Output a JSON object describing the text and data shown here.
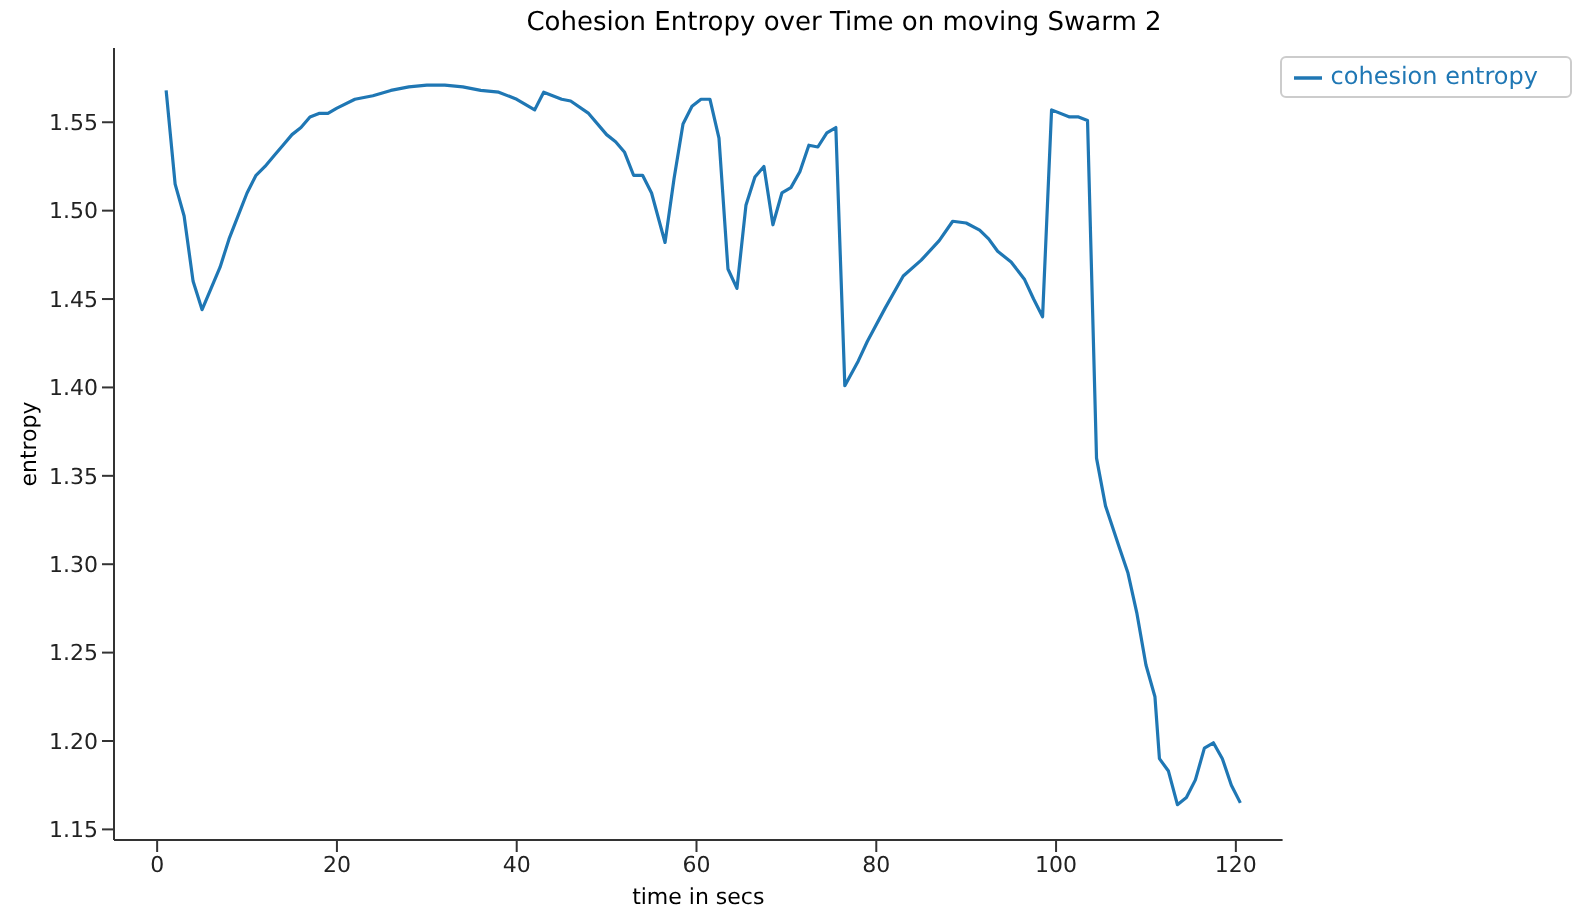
{
  "chart_data": {
    "type": "line",
    "title": "Cohesion Entropy over Time on moving Swarm 2",
    "xlabel": "time in secs",
    "ylabel": "entropy",
    "x": [
      1,
      2,
      3,
      4,
      5,
      6,
      7,
      8,
      9,
      10,
      11,
      12,
      13,
      14,
      15,
      16,
      17,
      18,
      19,
      20,
      22,
      24,
      26,
      28,
      30,
      32,
      34,
      36,
      38,
      40,
      42,
      43,
      45,
      46,
      48,
      50,
      51,
      52,
      53,
      54,
      55,
      56.5,
      57.5,
      58.5,
      59.5,
      60.5,
      61.5,
      62.5,
      63.5,
      64.5,
      65.5,
      66.5,
      67.5,
      68.5,
      69.5,
      70.5,
      71.5,
      72.5,
      73.5,
      74.5,
      75.5,
      76.5,
      78,
      79,
      81,
      83,
      85,
      87,
      88.5,
      90,
      91.5,
      92.5,
      93.5,
      95,
      96.5,
      97.5,
      98.5,
      99.5,
      101.5,
      102.5,
      103.5,
      104.5,
      105.5,
      107,
      108,
      109,
      110,
      111,
      111.5,
      112.5,
      113.5,
      114.5,
      115.5,
      116.5,
      117.5,
      118.5,
      119.5,
      120.5
    ],
    "series": [
      {
        "name": "cohesion entropy",
        "color": "#1f77b4",
        "values": [
          1.568,
          1.515,
          1.497,
          1.46,
          1.444,
          1.456,
          1.468,
          1.484,
          1.497,
          1.51,
          1.52,
          1.525,
          1.531,
          1.537,
          1.543,
          1.547,
          1.553,
          1.555,
          1.555,
          1.558,
          1.563,
          1.565,
          1.568,
          1.57,
          1.571,
          1.571,
          1.57,
          1.568,
          1.567,
          1.563,
          1.557,
          1.567,
          1.563,
          1.562,
          1.555,
          1.543,
          1.539,
          1.533,
          1.52,
          1.52,
          1.51,
          1.482,
          1.518,
          1.549,
          1.559,
          1.563,
          1.563,
          1.541,
          1.467,
          1.456,
          1.503,
          1.519,
          1.525,
          1.492,
          1.51,
          1.513,
          1.522,
          1.537,
          1.536,
          1.544,
          1.547,
          1.401,
          1.415,
          1.426,
          1.445,
          1.463,
          1.472,
          1.483,
          1.494,
          1.493,
          1.489,
          1.484,
          1.477,
          1.471,
          1.461,
          1.45,
          1.44,
          1.557,
          1.553,
          1.553,
          1.551,
          1.36,
          1.333,
          1.31,
          1.295,
          1.272,
          1.243,
          1.225,
          1.19,
          1.183,
          1.164,
          1.168,
          1.178,
          1.196,
          1.199,
          1.19,
          1.175,
          1.165
        ]
      }
    ],
    "xlim": [
      -4.8,
      125.2
    ],
    "xticks": [
      0,
      20,
      40,
      60,
      80,
      100,
      120
    ],
    "ylim": [
      1.144,
      1.592
    ],
    "yticks": [
      1.15,
      {
        "value": 1.2,
        "label": "1.20"
      },
      1.25,
      {
        "value": 1.3,
        "label": "1.30"
      },
      1.35,
      {
        "value": 1.4,
        "label": "1.40"
      },
      1.45,
      {
        "value": 1.5,
        "label": "1.50"
      },
      1.55
    ],
    "grid": false,
    "legend": "top right",
    "marker": "none",
    "line_style": "solid"
  }
}
